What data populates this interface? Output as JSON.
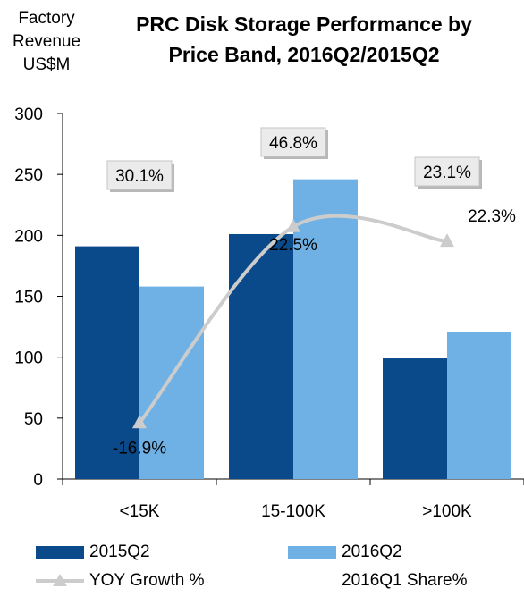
{
  "unit_label": [
    "Factory",
    "Revenue",
    "US$M"
  ],
  "title_lines": [
    "PRC Disk Storage Performance by",
    "Price Band, 2016Q2/2015Q2"
  ],
  "colors": {
    "series_2015": "#0b4a8a",
    "series_2016": "#6fb1e4",
    "growth_line": "#cccccc"
  },
  "chart_data": {
    "type": "bar",
    "categories": [
      "<15K",
      "15-100K",
      ">100K"
    ],
    "series": [
      {
        "name": "2015Q2",
        "values": [
          191,
          201,
          99
        ]
      },
      {
        "name": "2016Q2",
        "values": [
          158,
          246,
          121
        ]
      }
    ],
    "yoy_growth": {
      "name": "YOY Growth %",
      "points": [
        46,
        207,
        195
      ],
      "labels": [
        "-16.9%",
        "22.5%",
        "22.3%"
      ]
    },
    "share": {
      "name": "2016Q1 Share%",
      "labels": [
        "30.1%",
        "46.8%",
        "23.1%"
      ]
    },
    "ylim": [
      0,
      300
    ],
    "yticks": [
      0,
      50,
      100,
      150,
      200,
      250,
      300
    ],
    "legend_position": "bottom"
  }
}
